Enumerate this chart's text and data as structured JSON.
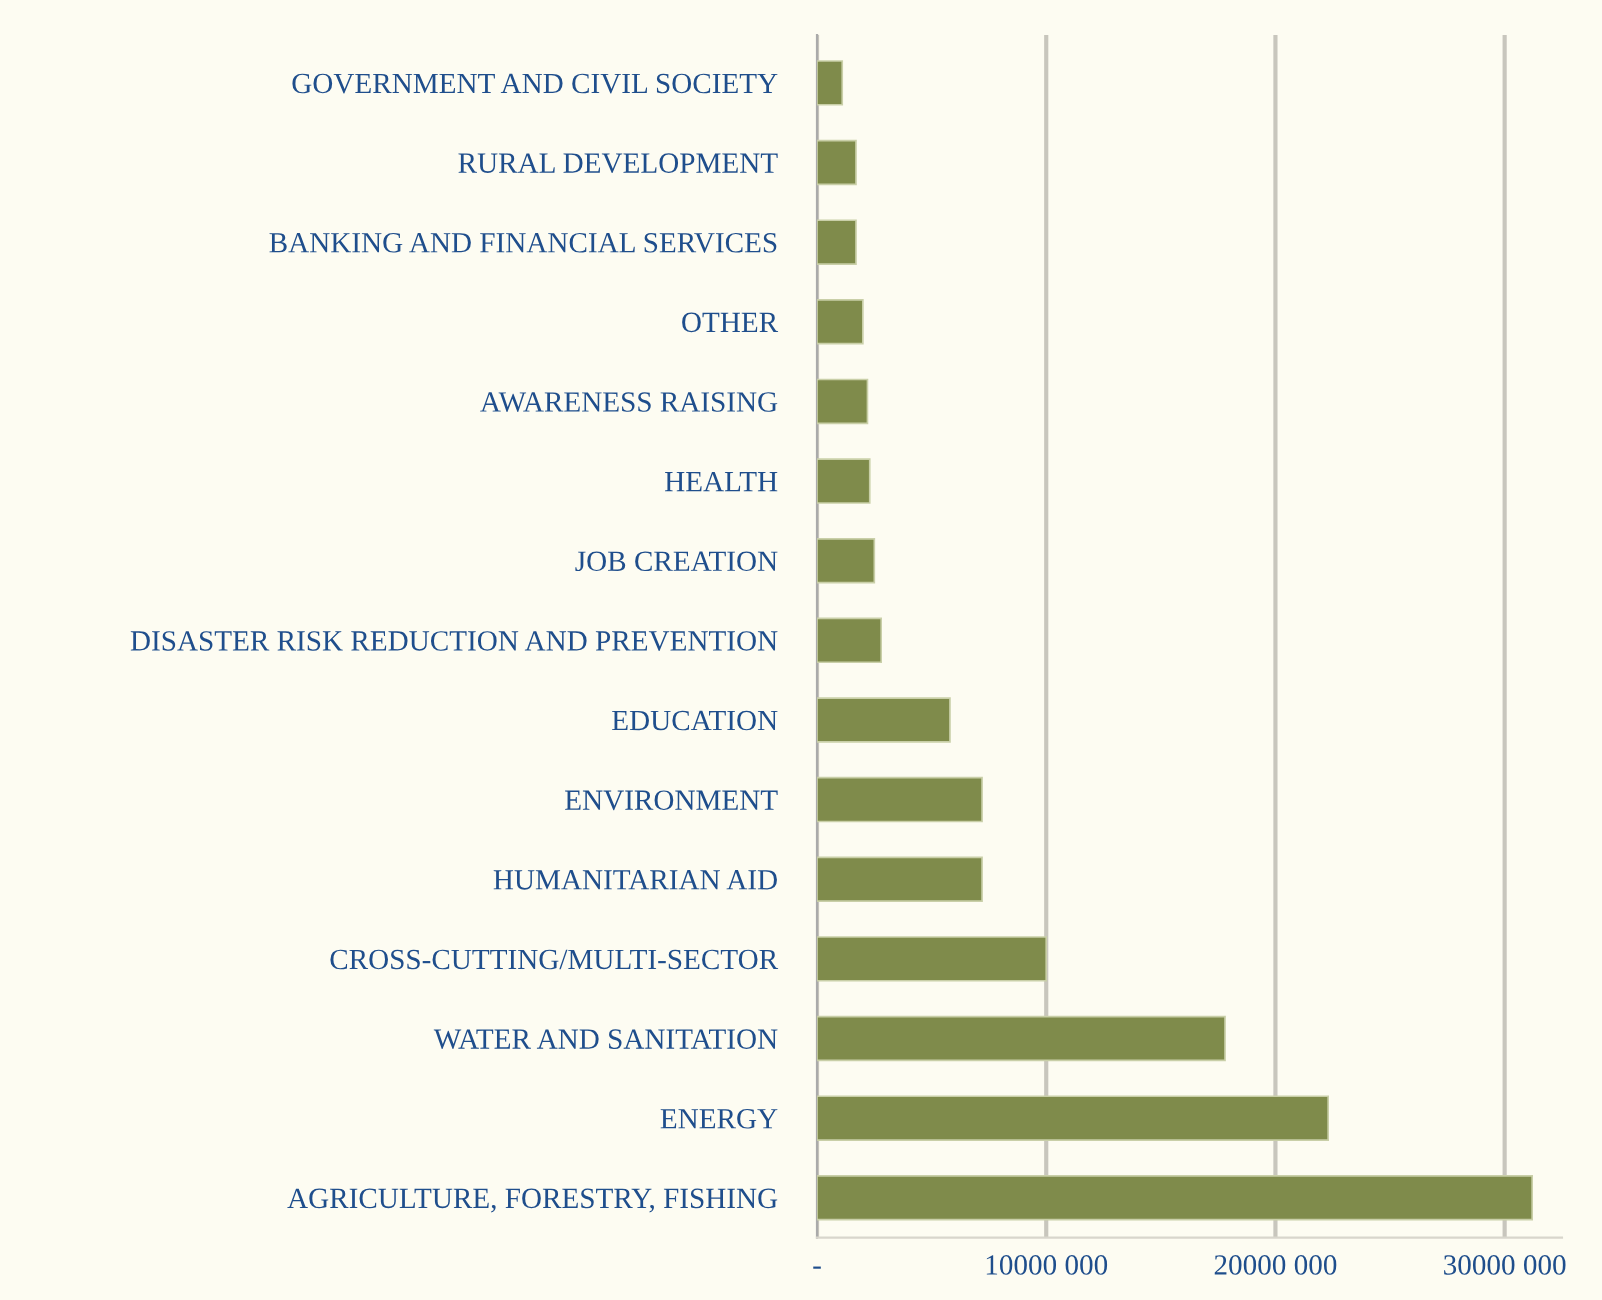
{
  "chart_data": {
    "type": "bar",
    "orientation": "horizontal",
    "categories": [
      "GOVERNMENT AND CIVIL SOCIETY",
      "RURAL DEVELOPMENT",
      "BANKING AND FINANCIAL SERVICES",
      "OTHER",
      "AWARENESS RAISING",
      "HEALTH",
      "JOB CREATION",
      "DISASTER RISK REDUCTION AND PREVENTION",
      "EDUCATION",
      "ENVIRONMENT",
      "HUMANITARIAN AID",
      "CROSS-CUTTING/MULTI-SECTOR",
      "WATER AND SANITATION",
      "ENERGY",
      "AGRICULTURE, FORESTRY, FISHING"
    ],
    "values": [
      1100000,
      1700000,
      1700000,
      2000000,
      2200000,
      2300000,
      2500000,
      2800000,
      5800000,
      7200000,
      7200000,
      10000000,
      17800000,
      22300000,
      31200000
    ],
    "color": "#7f8b4b",
    "xlim": [
      0,
      32500000
    ],
    "xticks": [
      {
        "value": 0,
        "label": "-"
      },
      {
        "value": 10000000,
        "label": "10000 000"
      },
      {
        "value": 20000000,
        "label": "20000 000"
      },
      {
        "value": 30000000,
        "label": "30000 000"
      }
    ],
    "grid": "x",
    "legend": false
  }
}
